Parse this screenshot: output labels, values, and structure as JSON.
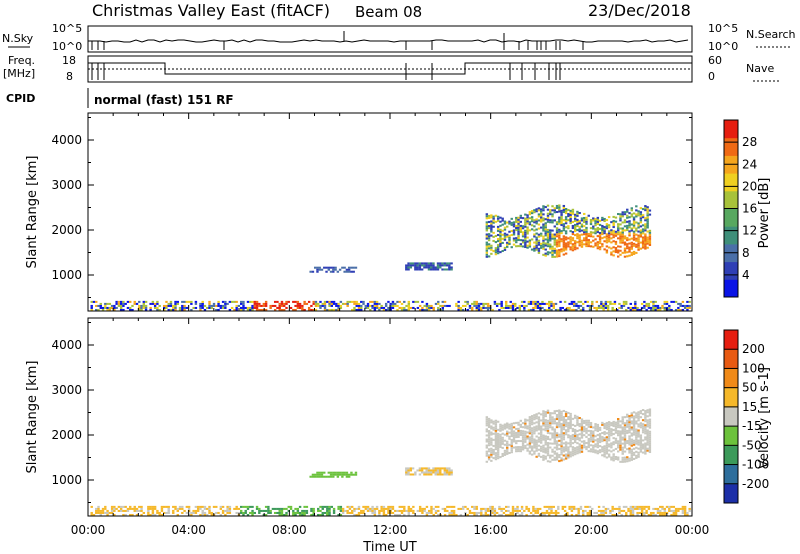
{
  "header": {
    "title": "Christmas Valley East (fitACF)",
    "beam": "Beam 08",
    "date": "23/Dec/2018"
  },
  "sky_panel": {
    "left_label": "N.Sky",
    "right_label": "N.Search",
    "left_ticks": [
      "10^5",
      "10^0"
    ],
    "right_ticks": [
      "10^5",
      "10^0"
    ]
  },
  "freq_panel": {
    "left_label_1": "Freq.",
    "left_label_2": "[MHz]",
    "right_label": "Nave",
    "left_ticks": [
      "18",
      "8"
    ],
    "right_ticks": [
      "60",
      "0"
    ]
  },
  "cpid_panel": {
    "label": "CPID",
    "text": "normal (fast) 151 RF"
  },
  "chart_data": [
    {
      "type": "heatmap",
      "name": "power",
      "ylabel": "Slant Range [km]",
      "y_ticks": [
        "4000",
        "3000",
        "2000",
        "1000"
      ],
      "ylim": [
        200,
        4600
      ],
      "colorbar_label": "Power [dB]",
      "colorbar_ticks": [
        "28",
        "24",
        "20",
        "16",
        "12",
        "8",
        "4"
      ],
      "colorbar_colors": [
        "#0a14e6",
        "#2f3fb5",
        "#4a6fa8",
        "#3f8f7a",
        "#58a860",
        "#a8c23a",
        "#f0d020",
        "#f5a51c",
        "#f06a14",
        "#e61e10"
      ]
    },
    {
      "type": "heatmap",
      "name": "velocity",
      "ylabel": "Slant Range [km]",
      "y_ticks": [
        "4000",
        "3000",
        "2000",
        "1000"
      ],
      "ylim": [
        200,
        4600
      ],
      "xlabel": "Time UT",
      "x_ticks": [
        "00:00",
        "04:00",
        "08:00",
        "12:00",
        "16:00",
        "20:00",
        "00:00"
      ],
      "colorbar_label": "Velocity [m s-1]",
      "colorbar_ticks": [
        "200",
        "100",
        "50",
        "15",
        "-15",
        "-50",
        "-100",
        "-200"
      ],
      "colorbar_colors": [
        "#1c2fa8",
        "#2e6e9c",
        "#3c9a5a",
        "#6cc23c",
        "#c8c8c0",
        "#f5b82a",
        "#f08a18",
        "#e85a12",
        "#e61e10"
      ]
    }
  ]
}
